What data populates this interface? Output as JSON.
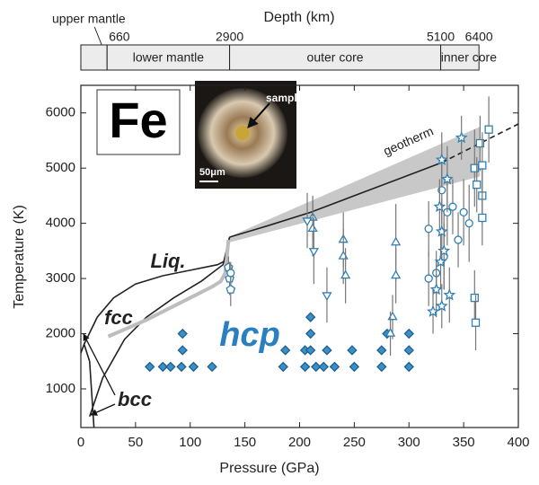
{
  "chart_data": {
    "type": "scatter",
    "xlabel": "Pressure (GPa)",
    "ylabel": "Temperature (K)",
    "x2label": "Depth (km)",
    "xlim": [
      0,
      400
    ],
    "xticks": [
      0,
      50,
      100,
      150,
      200,
      250,
      300,
      350,
      400
    ],
    "ylim": [
      300,
      6500
    ],
    "yticks": [
      1000,
      2000,
      3000,
      4000,
      5000,
      6000
    ],
    "x2ticks": [
      660,
      2900,
      5100,
      6400
    ],
    "x2tick_pressures": [
      24,
      136,
      329,
      364
    ],
    "regions": [
      "upper mantle",
      "lower mantle",
      "outer core",
      "inner core"
    ],
    "annotations": {
      "element": "Fe",
      "liquid": "Liq.",
      "fcc": "fcc",
      "bcc": "bcc",
      "hcp": "hcp",
      "geotherm": "geotherm",
      "sample": "sample",
      "scale": "50μm"
    },
    "series": [
      {
        "marker": "diamond",
        "color": "#3b8fc9",
        "x": [
          63,
          75,
          82,
          92,
          103,
          120,
          185,
          205,
          215,
          222,
          232,
          250,
          275,
          300,
          93,
          187,
          205,
          210,
          225,
          248,
          275,
          300,
          93,
          210,
          280,
          300,
          210
        ],
        "values": [
          1400,
          1400,
          1400,
          1400,
          1400,
          1400,
          1400,
          1400,
          1400,
          1400,
          1400,
          1400,
          1400,
          1400,
          1700,
          1700,
          1700,
          1700,
          1700,
          1700,
          1700,
          1700,
          2000,
          2000,
          2000,
          2000,
          2300
        ]
      },
      {
        "marker": "triangle-up",
        "color": "#2f7fb5",
        "x": [
          212,
          212,
          240,
          240,
          242,
          288,
          288,
          285,
          283
        ],
        "values": [
          4100,
          3900,
          3700,
          3400,
          3050,
          3650,
          3050,
          2300,
          2000
        ],
        "errors": [
          400,
          500,
          500,
          500,
          500,
          700,
          500,
          400,
          400
        ]
      },
      {
        "marker": "triangle-down",
        "color": "#2f7fb5",
        "x": [
          207,
          213,
          225
        ],
        "values": [
          4050,
          3500,
          2700
        ],
        "errors": [
          500,
          600,
          500
        ]
      },
      {
        "marker": "pentagon",
        "color": "#2f7fb5",
        "x": [
          135,
          136,
          137
        ],
        "values": [
          3200,
          3000,
          2800
        ],
        "errors": [
          200,
          300,
          300
        ]
      },
      {
        "marker": "circle",
        "color": "#2f7fb5",
        "x": [
          318,
          330,
          340,
          350,
          355,
          335,
          318,
          325,
          332,
          345,
          137
        ],
        "values": [
          3900,
          4600,
          4300,
          4200,
          4000,
          4200,
          3000,
          3100,
          3400,
          3700,
          3100
        ],
        "errors": [
          500,
          600,
          500,
          600,
          700,
          600,
          500,
          400,
          600,
          500,
          200
        ]
      },
      {
        "marker": "star",
        "color": "#2f7fb5",
        "x": [
          348,
          330,
          335,
          328,
          330,
          332,
          329,
          325,
          330,
          322,
          337
        ],
        "values": [
          5550,
          5150,
          4800,
          4300,
          3850,
          3500,
          3300,
          2800,
          2500,
          2400,
          2700
        ],
        "errors": [
          400,
          500,
          600,
          500,
          600,
          700,
          500,
          500,
          400,
          400,
          500
        ]
      },
      {
        "marker": "square",
        "color": "#2f7fb5",
        "x": [
          373,
          365,
          367,
          360,
          362,
          367,
          367,
          360,
          361
        ],
        "values": [
          5700,
          5450,
          5050,
          5000,
          4700,
          4500,
          4100,
          2650,
          2200
        ],
        "errors": [
          600,
          500,
          600,
          700,
          500,
          500,
          500,
          500,
          500
        ]
      }
    ],
    "curves": [
      {
        "color": "#222",
        "x": [
          136,
          170,
          210,
          250,
          290,
          330
        ],
        "values": [
          3750,
          3950,
          4200,
          4500,
          4800,
          5100
        ]
      },
      {
        "color": "#222",
        "dashed": true,
        "x": [
          330,
          360,
          400
        ],
        "values": [
          5100,
          5400,
          5800
        ]
      },
      {
        "color": "#222",
        "x": [
          3,
          15,
          30,
          50,
          75,
          100,
          125,
          135
        ],
        "values": [
          1810,
          2300,
          2650,
          2900,
          3050,
          3150,
          3250,
          3350
        ]
      },
      {
        "color": "#222",
        "x": [
          8,
          20,
          40,
          60,
          85,
          110,
          130,
          136
        ],
        "values": [
          500,
          1200,
          1900,
          2300,
          2650,
          2950,
          3250,
          3750
        ]
      },
      {
        "color": "#222",
        "x": [
          0,
          3,
          8,
          12
        ],
        "values": [
          1650,
          1810,
          1500,
          300
        ]
      },
      {
        "color": "#bdbdbd",
        "width": 4,
        "x": [
          25,
          60,
          100,
          120,
          128,
          132,
          135
        ],
        "values": [
          1950,
          2250,
          2650,
          2850,
          2950,
          3100,
          3700
        ]
      }
    ],
    "band": {
      "color": "#c8c8c8",
      "x": [
        135,
        365
      ],
      "lower": [
        3650,
        4850
      ],
      "upper": [
        3750,
        5750
      ]
    }
  }
}
